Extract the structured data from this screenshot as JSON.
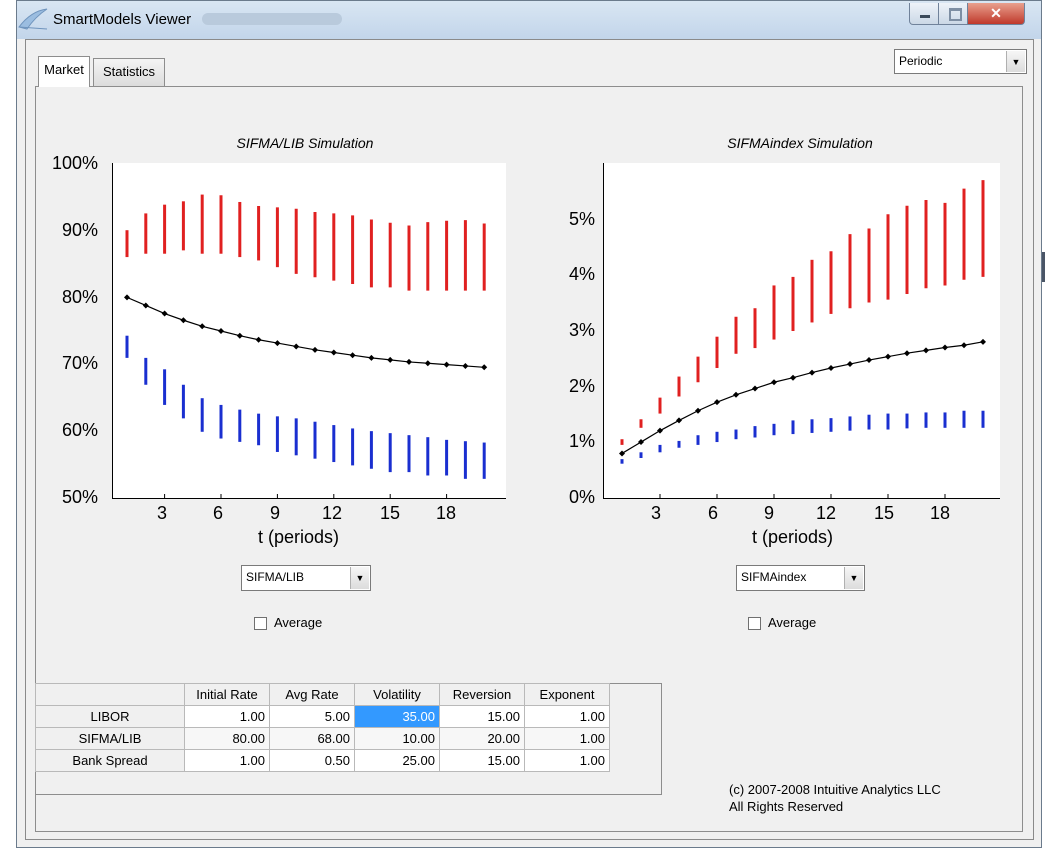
{
  "window": {
    "title": "SmartModels Viewer",
    "close_glyph": "✕"
  },
  "tabs": [
    {
      "label": "Market"
    },
    {
      "label": "Statistics"
    }
  ],
  "mode_select": {
    "value": "Periodic"
  },
  "charts_text": {
    "left_title": "SIFMA/LIB Simulation",
    "right_title": "SIFMAindex Simulation",
    "left_yticks": [
      "100%",
      "90%",
      "80%",
      "70%",
      "60%",
      "50%"
    ],
    "right_yticks": [
      "5%",
      "4%",
      "3%",
      "2%",
      "1%",
      "0%"
    ],
    "xticks": [
      "3",
      "6",
      "9",
      "12",
      "15",
      "18"
    ],
    "xlabel": "t (periods)"
  },
  "left_series_select": {
    "value": "SIFMA/LIB"
  },
  "right_series_select": {
    "value": "SIFMAindex"
  },
  "left_average": {
    "label": "Average",
    "checked": false
  },
  "right_average": {
    "label": "Average",
    "checked": false
  },
  "parameters_table": {
    "columns": [
      "Initial Rate",
      "Avg Rate",
      "Volatility",
      "Reversion",
      "Exponent"
    ],
    "rows": [
      {
        "name": "LIBOR",
        "values": [
          "1.00",
          "5.00",
          "35.00",
          "15.00",
          "1.00"
        ]
      },
      {
        "name": "SIFMA/LIB",
        "values": [
          "80.00",
          "68.00",
          "10.00",
          "20.00",
          "1.00"
        ]
      },
      {
        "name": "Bank Spread",
        "values": [
          "1.00",
          "0.50",
          "25.00",
          "15.00",
          "1.00"
        ]
      }
    ]
  },
  "copyright": {
    "line1": "(c) 2007-2008 Intuitive Analytics LLC",
    "line2": "All Rights Reserved"
  },
  "colors": {
    "upper_band": "#e02020",
    "lower_band": "#1a2fd0",
    "mean": "#000000"
  },
  "chart_data": [
    {
      "type": "line",
      "title": "SIFMA/LIB Simulation",
      "xlabel": "t (periods)",
      "ylabel": "",
      "ylim": [
        50,
        100
      ],
      "x": [
        1,
        2,
        3,
        4,
        5,
        6,
        7,
        8,
        9,
        10,
        11,
        12,
        13,
        14,
        15,
        16,
        17,
        18,
        19,
        20
      ],
      "series": [
        {
          "values": [
            80.0,
            78.8,
            77.6,
            76.6,
            75.7,
            75.0,
            74.3,
            73.7,
            73.2,
            72.7,
            72.2,
            71.8,
            71.4,
            71.0,
            70.7,
            70.4,
            70.2,
            70.0,
            69.8,
            69.6
          ]
        },
        {
          "values": [
            [
              86,
              90
            ],
            [
              86.5,
              92.5
            ],
            [
              86.5,
              93.8
            ],
            [
              87,
              94.3
            ],
            [
              86.5,
              95.3
            ],
            [
              86.5,
              95.2
            ],
            [
              86,
              94.2
            ],
            [
              85.5,
              93.6
            ],
            [
              84.5,
              93.4
            ],
            [
              83.5,
              93.2
            ],
            [
              83,
              92.7
            ],
            [
              82.5,
              92.5
            ],
            [
              82,
              92.2
            ],
            [
              81.5,
              91.6
            ],
            [
              81.5,
              91.1
            ],
            [
              81,
              90.7
            ],
            [
              81,
              91.2
            ],
            [
              81,
              91.4
            ],
            [
              81,
              91.5
            ],
            [
              81,
              91
            ]
          ]
        },
        {
          "values": [
            [
              71,
              74.3
            ],
            [
              67,
              71
            ],
            [
              64,
              69.3
            ],
            [
              62,
              67
            ],
            [
              60,
              65
            ],
            [
              59,
              64
            ],
            [
              58.5,
              63.3
            ],
            [
              58,
              62.7
            ],
            [
              57,
              62.3
            ],
            [
              56.5,
              62
            ],
            [
              56,
              61.5
            ],
            [
              55.5,
              61
            ],
            [
              55,
              60.5
            ],
            [
              54.5,
              60.1
            ],
            [
              54,
              59.8
            ],
            [
              54,
              59.5
            ],
            [
              53.5,
              59.2
            ],
            [
              53.5,
              58.8
            ],
            [
              53,
              58.6
            ],
            [
              53,
              58.4
            ]
          ]
        }
      ]
    },
    {
      "type": "line",
      "title": "SIFMAindex Simulation",
      "xlabel": "t (periods)",
      "ylabel": "",
      "ylim": [
        0,
        5.9
      ],
      "x": [
        1,
        2,
        3,
        4,
        5,
        6,
        7,
        8,
        9,
        10,
        11,
        12,
        13,
        14,
        15,
        16,
        17,
        18,
        19,
        20
      ],
      "series": [
        {
          "values": [
            0.8,
            1.0,
            1.2,
            1.38,
            1.55,
            1.7,
            1.83,
            1.94,
            2.05,
            2.13,
            2.22,
            2.3,
            2.37,
            2.44,
            2.5,
            2.56,
            2.61,
            2.66,
            2.7,
            2.76
          ]
        },
        {
          "values": [
            [
              0.95,
              1.05
            ],
            [
              1.25,
              1.4
            ],
            [
              1.5,
              1.78
            ],
            [
              1.8,
              2.15
            ],
            [
              2.05,
              2.5
            ],
            [
              2.3,
              2.85
            ],
            [
              2.55,
              3.2
            ],
            [
              2.65,
              3.35
            ],
            [
              2.8,
              3.75
            ],
            [
              2.95,
              3.9
            ],
            [
              3.1,
              4.2
            ],
            [
              3.25,
              4.35
            ],
            [
              3.35,
              4.65
            ],
            [
              3.45,
              4.75
            ],
            [
              3.5,
              5.0
            ],
            [
              3.6,
              5.15
            ],
            [
              3.7,
              5.25
            ],
            [
              3.75,
              5.2
            ],
            [
              3.85,
              5.45
            ],
            [
              3.9,
              5.6
            ]
          ]
        },
        {
          "values": [
            [
              0.62,
              0.7
            ],
            [
              0.72,
              0.82
            ],
            [
              0.82,
              0.95
            ],
            [
              0.9,
              1.02
            ],
            [
              0.95,
              1.12
            ],
            [
              1.0,
              1.18
            ],
            [
              1.05,
              1.22
            ],
            [
              1.08,
              1.28
            ],
            [
              1.12,
              1.32
            ],
            [
              1.14,
              1.38
            ],
            [
              1.16,
              1.4
            ],
            [
              1.18,
              1.42
            ],
            [
              1.2,
              1.45
            ],
            [
              1.22,
              1.48
            ],
            [
              1.22,
              1.5
            ],
            [
              1.24,
              1.5
            ],
            [
              1.25,
              1.52
            ],
            [
              1.25,
              1.52
            ],
            [
              1.25,
              1.55
            ],
            [
              1.25,
              1.55
            ]
          ]
        }
      ]
    }
  ]
}
